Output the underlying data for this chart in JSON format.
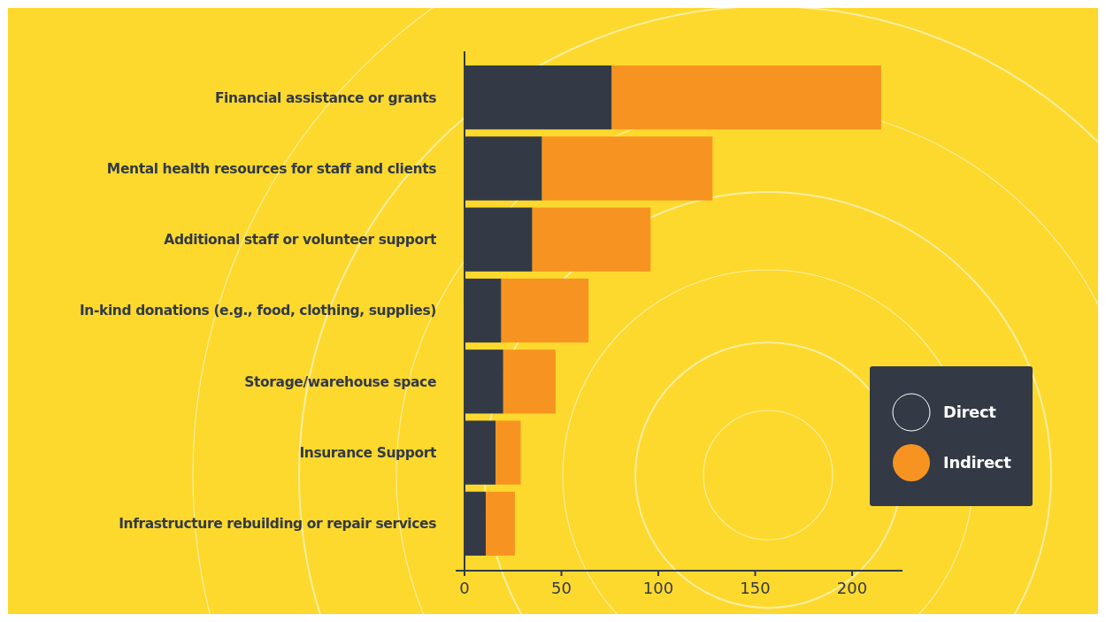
{
  "chart_data": {
    "type": "bar",
    "orientation": "horizontal",
    "stacked": true,
    "categories": [
      "Financial assistance or grants",
      "Mental health resources for staff and clients",
      "Additional staff or volunteer support",
      "In-kind donations (e.g., food, clothing, supplies)",
      "Storage/warehouse space",
      "Insurance Support",
      "Infrastructure rebuilding or repair services"
    ],
    "series": [
      {
        "name": "Direct",
        "color": "#333a45",
        "values": [
          76,
          40,
          35,
          19,
          20,
          16,
          11
        ]
      },
      {
        "name": "Indirect",
        "color": "#f79421",
        "values": [
          139,
          88,
          61,
          45,
          27,
          13,
          15
        ]
      }
    ],
    "xlim": [
      0,
      226
    ],
    "xticks": [
      0,
      50,
      100,
      150,
      200
    ],
    "grid": false,
    "legend": "right"
  }
}
